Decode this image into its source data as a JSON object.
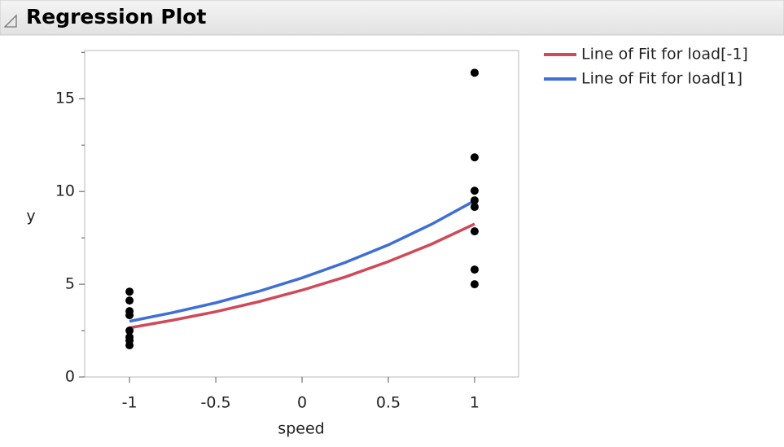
{
  "header": {
    "title": "Regression Plot"
  },
  "chart_data": {
    "type": "scatter",
    "xlabel": "speed",
    "ylabel": "y",
    "xlim": [
      -1.26,
      1.255
    ],
    "ylim": [
      0,
      17.6
    ],
    "xticks": [
      -1,
      -0.5,
      0,
      0.5,
      1
    ],
    "yticks": [
      0,
      5,
      10,
      15
    ],
    "yminorticks": [
      2.5,
      7.5,
      12.5,
      17.5
    ],
    "points": {
      "color": "#000000",
      "x": [
        -1,
        -1,
        -1,
        -1,
        -1,
        -1,
        -1,
        -1,
        1,
        1,
        1,
        1,
        1,
        1,
        1,
        1
      ],
      "values": [
        4.6,
        4.12,
        3.55,
        3.33,
        2.5,
        2.15,
        1.97,
        1.71,
        16.4,
        11.84,
        10.04,
        9.52,
        9.17,
        7.85,
        5.79,
        5.0
      ]
    },
    "series": [
      {
        "name": "Line of Fit for load[-1]",
        "color": "#d0495a",
        "x": [
          -1,
          -0.75,
          -0.5,
          -0.25,
          0,
          0.25,
          0.5,
          0.75,
          1
        ],
        "values": [
          2.65,
          3.06,
          3.52,
          4.06,
          4.68,
          5.39,
          6.22,
          7.16,
          8.25
        ]
      },
      {
        "name": "Line of Fit for load[1]",
        "color": "#3d6fd6",
        "x": [
          -1,
          -0.75,
          -0.5,
          -0.25,
          0,
          0.25,
          0.5,
          0.75,
          1
        ],
        "values": [
          3.0,
          3.47,
          4.0,
          4.62,
          5.34,
          6.17,
          7.12,
          8.23,
          9.5
        ]
      }
    ],
    "legend": "right"
  }
}
